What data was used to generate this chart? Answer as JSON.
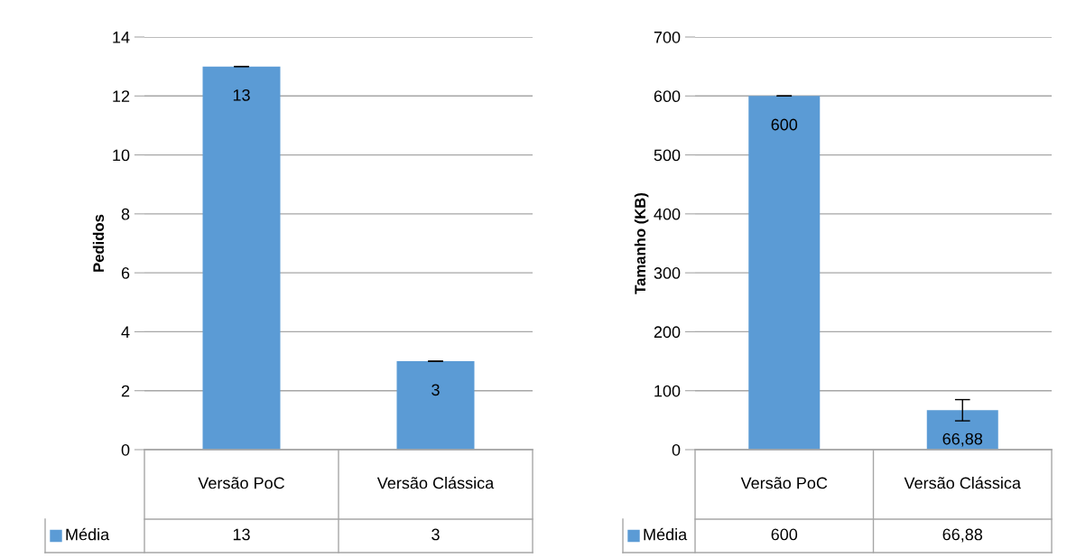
{
  "chart_data": [
    {
      "type": "bar",
      "ylabel": "Pedidos",
      "categories": [
        "Versão PoC",
        "Versão Clássica"
      ],
      "series": [
        {
          "name": "Média",
          "color": "#5b9bd5",
          "values": [
            13,
            3
          ],
          "value_labels": [
            "13",
            "3"
          ],
          "errors": [
            0,
            0
          ]
        }
      ],
      "ylim": [
        0,
        14
      ],
      "yticks": [
        0,
        2,
        4,
        6,
        8,
        10,
        12,
        14
      ],
      "grid": "y",
      "data_labels": true,
      "legend": "bottom"
    },
    {
      "type": "bar",
      "ylabel": "Tamanho (KB)",
      "categories": [
        "Versão PoC",
        "Versão Clássica"
      ],
      "series": [
        {
          "name": "Média",
          "color": "#5b9bd5",
          "values": [
            600,
            66.88
          ],
          "value_labels": [
            "600",
            "66,88"
          ],
          "errors": [
            0,
            18
          ]
        }
      ],
      "ylim": [
        0,
        700
      ],
      "yticks": [
        0,
        100,
        200,
        300,
        400,
        500,
        600,
        700
      ],
      "grid": "y",
      "data_labels": true,
      "legend": "bottom"
    }
  ]
}
